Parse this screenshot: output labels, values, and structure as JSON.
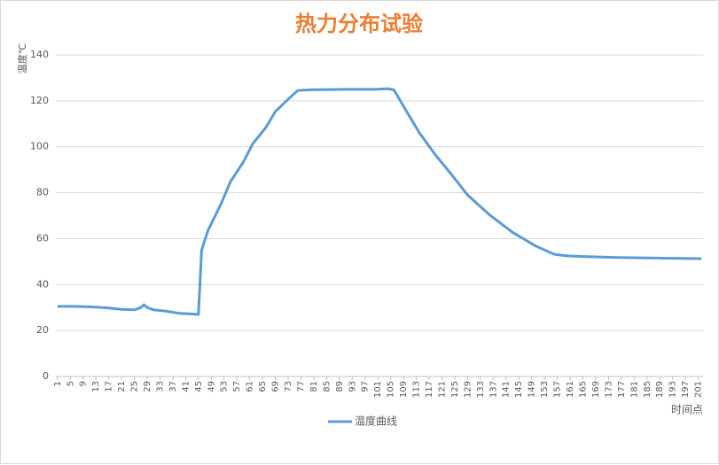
{
  "chart_data": {
    "type": "line",
    "title": "热力分布试验",
    "y_label": "温度℃",
    "x_label": "时间点",
    "x": [
      1,
      5,
      9,
      13,
      17,
      21,
      25,
      27,
      28,
      29,
      31,
      35,
      39,
      43,
      45,
      46,
      48,
      52,
      55,
      59,
      62,
      66,
      69,
      73,
      76,
      80,
      90,
      100,
      104,
      106,
      110,
      114,
      119,
      124,
      129,
      136,
      143,
      150,
      156,
      160,
      165,
      176,
      190,
      201,
      202
    ],
    "series": [
      {
        "name": "温度曲线",
        "color": "#5b9bd5",
        "values": [
          30.5,
          30.5,
          30.4,
          30.2,
          29.8,
          29.2,
          29.0,
          30.0,
          31.2,
          30.0,
          29.0,
          28.4,
          27.5,
          27.2,
          27.0,
          55,
          63.6,
          75,
          84.8,
          93.3,
          101.4,
          108.3,
          115.3,
          120.7,
          124.5,
          124.8,
          125,
          125,
          125.3,
          124.8,
          115.3,
          106,
          96.4,
          87.9,
          79,
          70.2,
          62.8,
          57,
          53.2,
          52.5,
          52.2,
          51.8,
          51.5,
          51.3,
          51.3
        ]
      }
    ],
    "xlim": [
      0.5,
      202.5
    ],
    "xticks": [
      1,
      5,
      9,
      13,
      17,
      21,
      25,
      29,
      33,
      37,
      41,
      45,
      49,
      53,
      57,
      61,
      65,
      69,
      73,
      77,
      81,
      85,
      89,
      93,
      97,
      101,
      105,
      109,
      113,
      117,
      121,
      125,
      129,
      133,
      137,
      141,
      145,
      149,
      153,
      157,
      161,
      165,
      169,
      173,
      177,
      181,
      185,
      189,
      193,
      197,
      201
    ],
    "ylim": [
      0,
      140
    ],
    "yticks": [
      0,
      20,
      40,
      60,
      80,
      100,
      120,
      140
    ],
    "grid": true,
    "legend": "bottom"
  }
}
